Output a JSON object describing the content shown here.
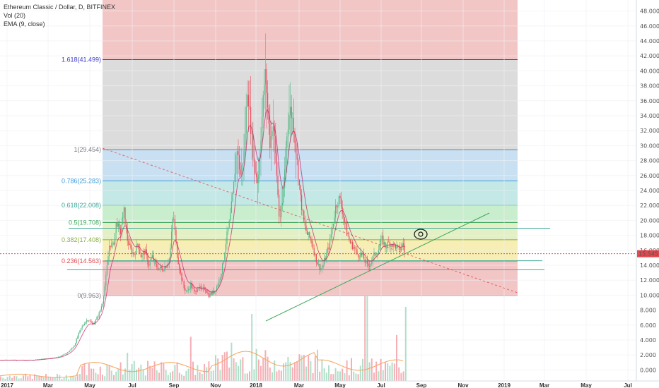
{
  "legend": {
    "title": "Ethereum Classic / Dollar, D, BITFINEX",
    "vol": "Vol (20)",
    "ema": "EMA (9, close)"
  },
  "price_tag": {
    "value": "15.545",
    "color": "#e0494e"
  },
  "colors": {
    "up": "#53b987",
    "down": "#eb4d5c",
    "ema": "#c61f6a",
    "fib_line": "#808080",
    "trend": "#3fa75a"
  },
  "chart_data": {
    "type": "candlestick",
    "symbol": "Ethereum Classic / Dollar, D, BITFINEX",
    "y_axis": {
      "range": [
        -1,
        49
      ],
      "ticks": [
        "0.000",
        "2.000",
        "4.000",
        "6.000",
        "8.000",
        "10.000",
        "12.000",
        "14.000",
        "16.000",
        "18.000",
        "20.000",
        "22.000",
        "24.000",
        "26.000",
        "28.000",
        "30.000",
        "32.000",
        "34.000",
        "36.000",
        "38.000",
        "40.000",
        "42.000",
        "44.000",
        "46.000",
        "48.000"
      ]
    },
    "x_axis": {
      "labels": [
        "2017",
        "Mar",
        "May",
        "Jul",
        "Sep",
        "Nov",
        "2018",
        "Mar",
        "May",
        "Jul",
        "Sep",
        "Nov",
        "2019",
        "Mar",
        "May",
        "Jul"
      ]
    },
    "last_price": 15.545,
    "fib_levels": [
      {
        "label": "0(9.963)",
        "ratio": 0,
        "value": 9.963,
        "color": "#787b86",
        "fill": "#f3c6c6"
      },
      {
        "label": "0.236(14.563)",
        "ratio": 0.236,
        "value": 14.563,
        "color": "#e0494e",
        "fill": "#f6eeb4"
      },
      {
        "label": "0.382(17.408)",
        "ratio": 0.382,
        "value": 17.408,
        "color": "#8bb03e",
        "fill": "#e3f0c6"
      },
      {
        "label": "0.5(19.708)",
        "ratio": 0.5,
        "value": 19.708,
        "color": "#3fa75a",
        "fill": "#c8eecd"
      },
      {
        "label": "0.618(22.008)",
        "ratio": 0.618,
        "value": 22.008,
        "color": "#3fa79a",
        "fill": "#c4e8e6"
      },
      {
        "label": "0.786(25.283)",
        "ratio": 0.786,
        "value": 25.283,
        "color": "#3f9ad8",
        "fill": "#c8e0f2"
      },
      {
        "label": "1(29.454)",
        "ratio": 1,
        "value": 29.454,
        "color": "#787b86",
        "fill": "#dcdcdc"
      },
      {
        "label": "1.618(41.499)",
        "ratio": 1.618,
        "value": 41.499,
        "color": "#3f3fc8",
        "fill": "#c9c9f3"
      }
    ],
    "fib_top_fill": "#f3c6c6",
    "horizontal_lines": [
      {
        "value": 18.95,
        "color": "#3fa79a"
      },
      {
        "value": 14.6,
        "color": "#3fa79a"
      },
      {
        "value": 13.4,
        "color": "#3fa79a"
      }
    ],
    "price_path": [
      [
        0,
        1.3
      ],
      [
        20,
        1.3
      ],
      [
        45,
        1.3
      ],
      [
        55,
        1.4
      ],
      [
        65,
        1.5
      ],
      [
        75,
        1.6
      ],
      [
        85,
        1.8
      ],
      [
        95,
        2.3
      ],
      [
        100,
        2.7
      ],
      [
        105,
        3.3
      ],
      [
        110,
        4.5
      ],
      [
        115,
        5.6
      ],
      [
        120,
        6.4
      ],
      [
        125,
        6.8
      ],
      [
        130,
        6.1
      ],
      [
        135,
        6.5
      ],
      [
        140,
        7.5
      ],
      [
        145,
        9.0
      ],
      [
        150,
        12.5
      ],
      [
        155,
        17.0
      ],
      [
        160,
        16.5
      ],
      [
        165,
        20.0
      ],
      [
        170,
        18.0
      ],
      [
        175,
        21.5
      ],
      [
        180,
        17.5
      ],
      [
        185,
        16.0
      ],
      [
        190,
        15.5
      ],
      [
        195,
        17.0
      ],
      [
        200,
        15.0
      ],
      [
        205,
        16.0
      ],
      [
        210,
        14.0
      ],
      [
        215,
        15.2
      ],
      [
        220,
        14.0
      ],
      [
        225,
        13.6
      ],
      [
        230,
        13.5
      ],
      [
        235,
        14.0
      ],
      [
        240,
        15.0
      ],
      [
        245,
        21.0
      ],
      [
        250,
        15.8
      ],
      [
        255,
        13.0
      ],
      [
        260,
        11.0
      ],
      [
        265,
        10.5
      ],
      [
        270,
        11.5
      ],
      [
        275,
        10.2
      ],
      [
        280,
        11.2
      ],
      [
        285,
        10.6
      ],
      [
        290,
        11.0
      ],
      [
        295,
        10.0
      ],
      [
        300,
        10.3
      ],
      [
        305,
        10.8
      ],
      [
        310,
        12.0
      ],
      [
        315,
        14.0
      ],
      [
        320,
        17.5
      ],
      [
        325,
        20.0
      ],
      [
        330,
        24.0
      ],
      [
        335,
        30.0
      ],
      [
        340,
        26.0
      ],
      [
        345,
        29.0
      ],
      [
        350,
        38.0
      ],
      [
        355,
        32.0
      ],
      [
        360,
        27.0
      ],
      [
        365,
        25.0
      ],
      [
        370,
        33.0
      ],
      [
        375,
        40.0
      ],
      [
        378,
        36.0
      ],
      [
        382,
        30.0
      ],
      [
        386,
        33.5
      ],
      [
        390,
        28.5
      ],
      [
        395,
        20.0
      ],
      [
        400,
        22.5
      ],
      [
        405,
        31.0
      ],
      [
        410,
        35.0
      ],
      [
        415,
        33.0
      ],
      [
        420,
        28.0
      ],
      [
        425,
        23.0
      ],
      [
        430,
        19.5
      ],
      [
        435,
        18.0
      ],
      [
        440,
        17.5
      ],
      [
        445,
        15.5
      ],
      [
        450,
        14.0
      ],
      [
        455,
        13.5
      ],
      [
        460,
        15.0
      ],
      [
        465,
        16.5
      ],
      [
        470,
        19.0
      ],
      [
        475,
        22.0
      ],
      [
        480,
        23.0
      ],
      [
        485,
        21.0
      ],
      [
        490,
        18.5
      ],
      [
        495,
        17.0
      ],
      [
        500,
        16.5
      ],
      [
        505,
        15.5
      ],
      [
        510,
        15.5
      ],
      [
        515,
        14.8
      ],
      [
        520,
        13.8
      ],
      [
        525,
        14.5
      ],
      [
        530,
        15.5
      ],
      [
        535,
        16.0
      ],
      [
        540,
        17.5
      ],
      [
        545,
        16.5
      ],
      [
        550,
        17.0
      ],
      [
        555,
        16.8
      ],
      [
        560,
        16.5
      ],
      [
        565,
        16.0
      ],
      [
        570,
        17.0
      ],
      [
        573,
        15.545
      ]
    ],
    "volume_bars": 180,
    "trendline_up": {
      "x1": 376,
      "y1": 455,
      "x2": 692,
      "y2": 302
    },
    "trendline_down_dashed": {
      "x1": 145,
      "y1": 210,
      "x2": 732,
      "y2": 415
    }
  }
}
